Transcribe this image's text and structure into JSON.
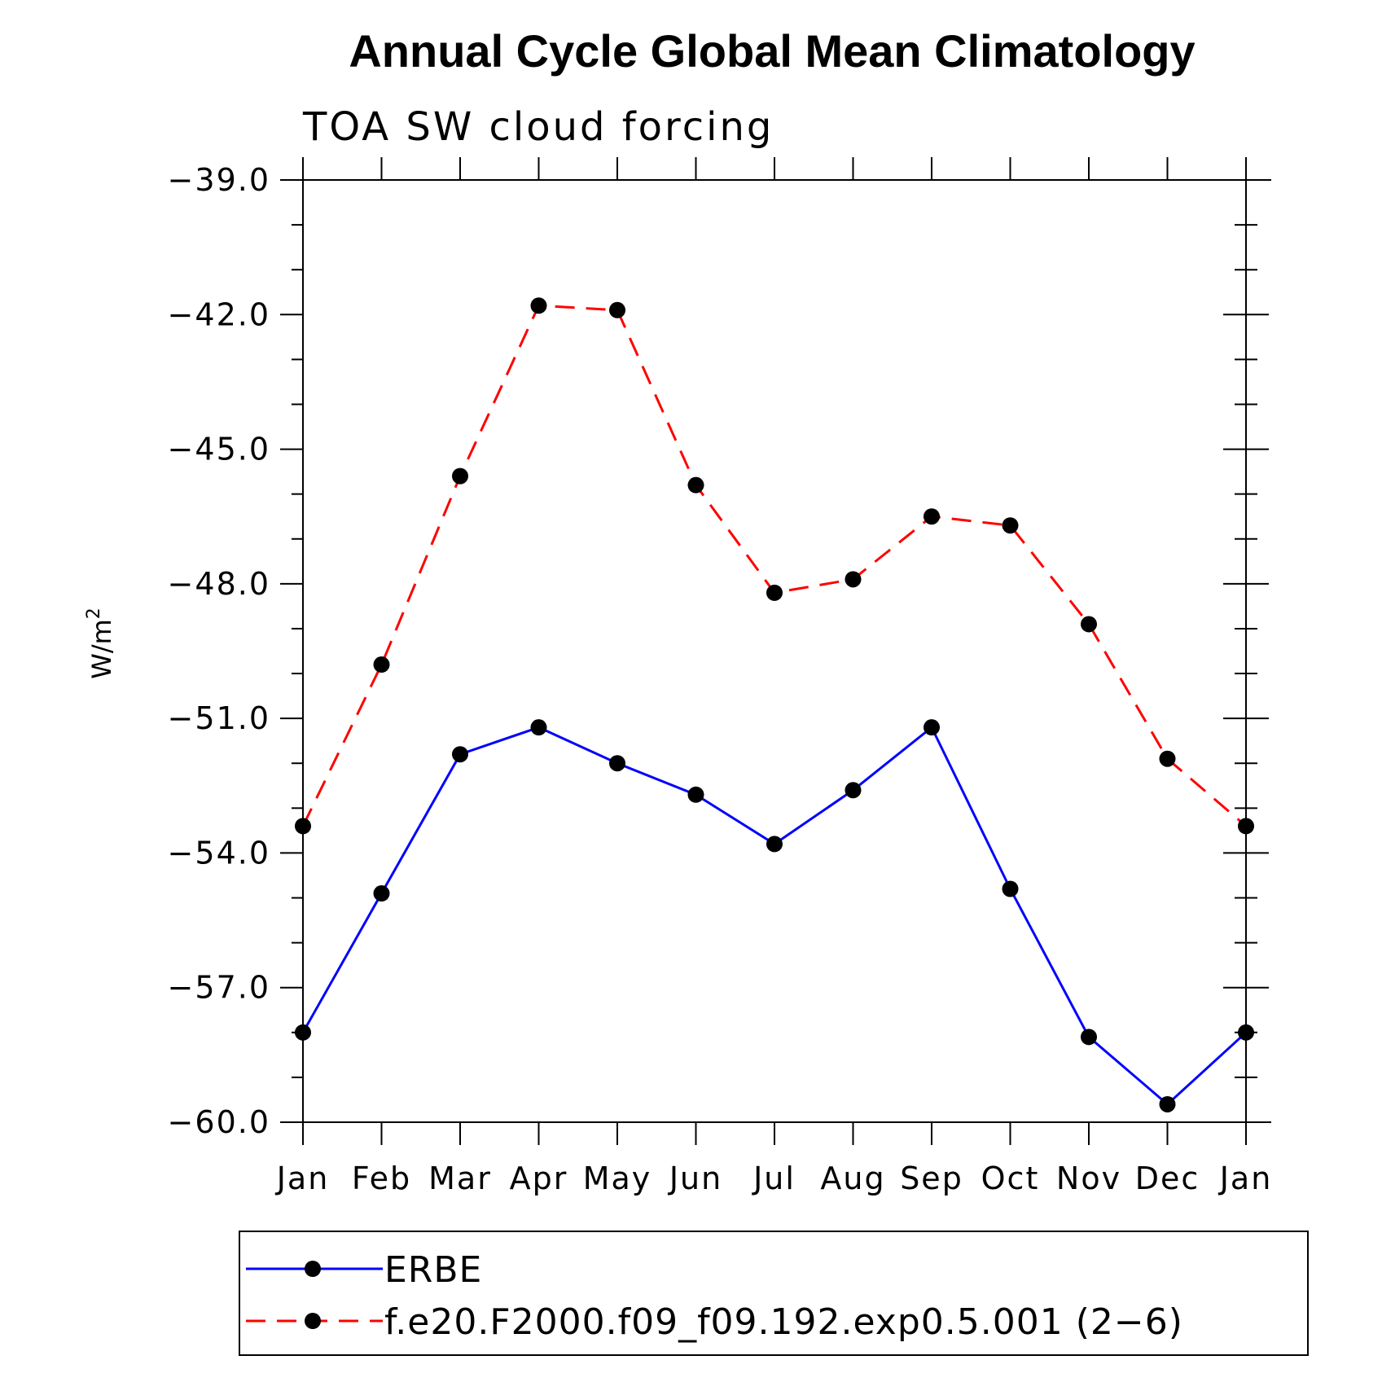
{
  "chart_data": {
    "type": "line",
    "title": "Annual Cycle Global Mean Climatology",
    "subtitle": "TOA SW cloud forcing",
    "xlabel": "",
    "ylabel": "W/m",
    "ylabel_superscript": "2",
    "categories": [
      "Jan",
      "Feb",
      "Mar",
      "Apr",
      "May",
      "Jun",
      "Jul",
      "Aug",
      "Sep",
      "Oct",
      "Nov",
      "Dec",
      "Jan"
    ],
    "ylim": [
      -60.0,
      -39.0
    ],
    "yticks": [
      -60.0,
      -57.0,
      -54.0,
      -51.0,
      -48.0,
      -45.0,
      -42.0,
      -39.0
    ],
    "ytick_labels": [
      "−60.0",
      "−57.0",
      "−54.0",
      "−51.0",
      "−48.0",
      "−45.0",
      "−42.0",
      "−39.0"
    ],
    "grid": false,
    "legend_position": "bottom",
    "series": [
      {
        "name": "ERBE",
        "color": "#0000ff",
        "line_style": "solid",
        "marker": "filled-circle",
        "values": [
          -58.0,
          -54.9,
          -51.8,
          -51.2,
          -52.0,
          -52.7,
          -53.8,
          -52.6,
          -51.2,
          -54.8,
          -58.1,
          -59.6,
          -58.0
        ]
      },
      {
        "name": "f.e20.F2000.f09_f09.192.exp0.5.001 (2−6)",
        "color": "#ff0000",
        "line_style": "dashed",
        "marker": "filled-circle",
        "values": [
          -53.4,
          -49.8,
          -45.6,
          -41.8,
          -41.9,
          -45.8,
          -48.2,
          -47.9,
          -46.5,
          -46.7,
          -48.9,
          -51.9,
          -53.4
        ]
      }
    ]
  }
}
